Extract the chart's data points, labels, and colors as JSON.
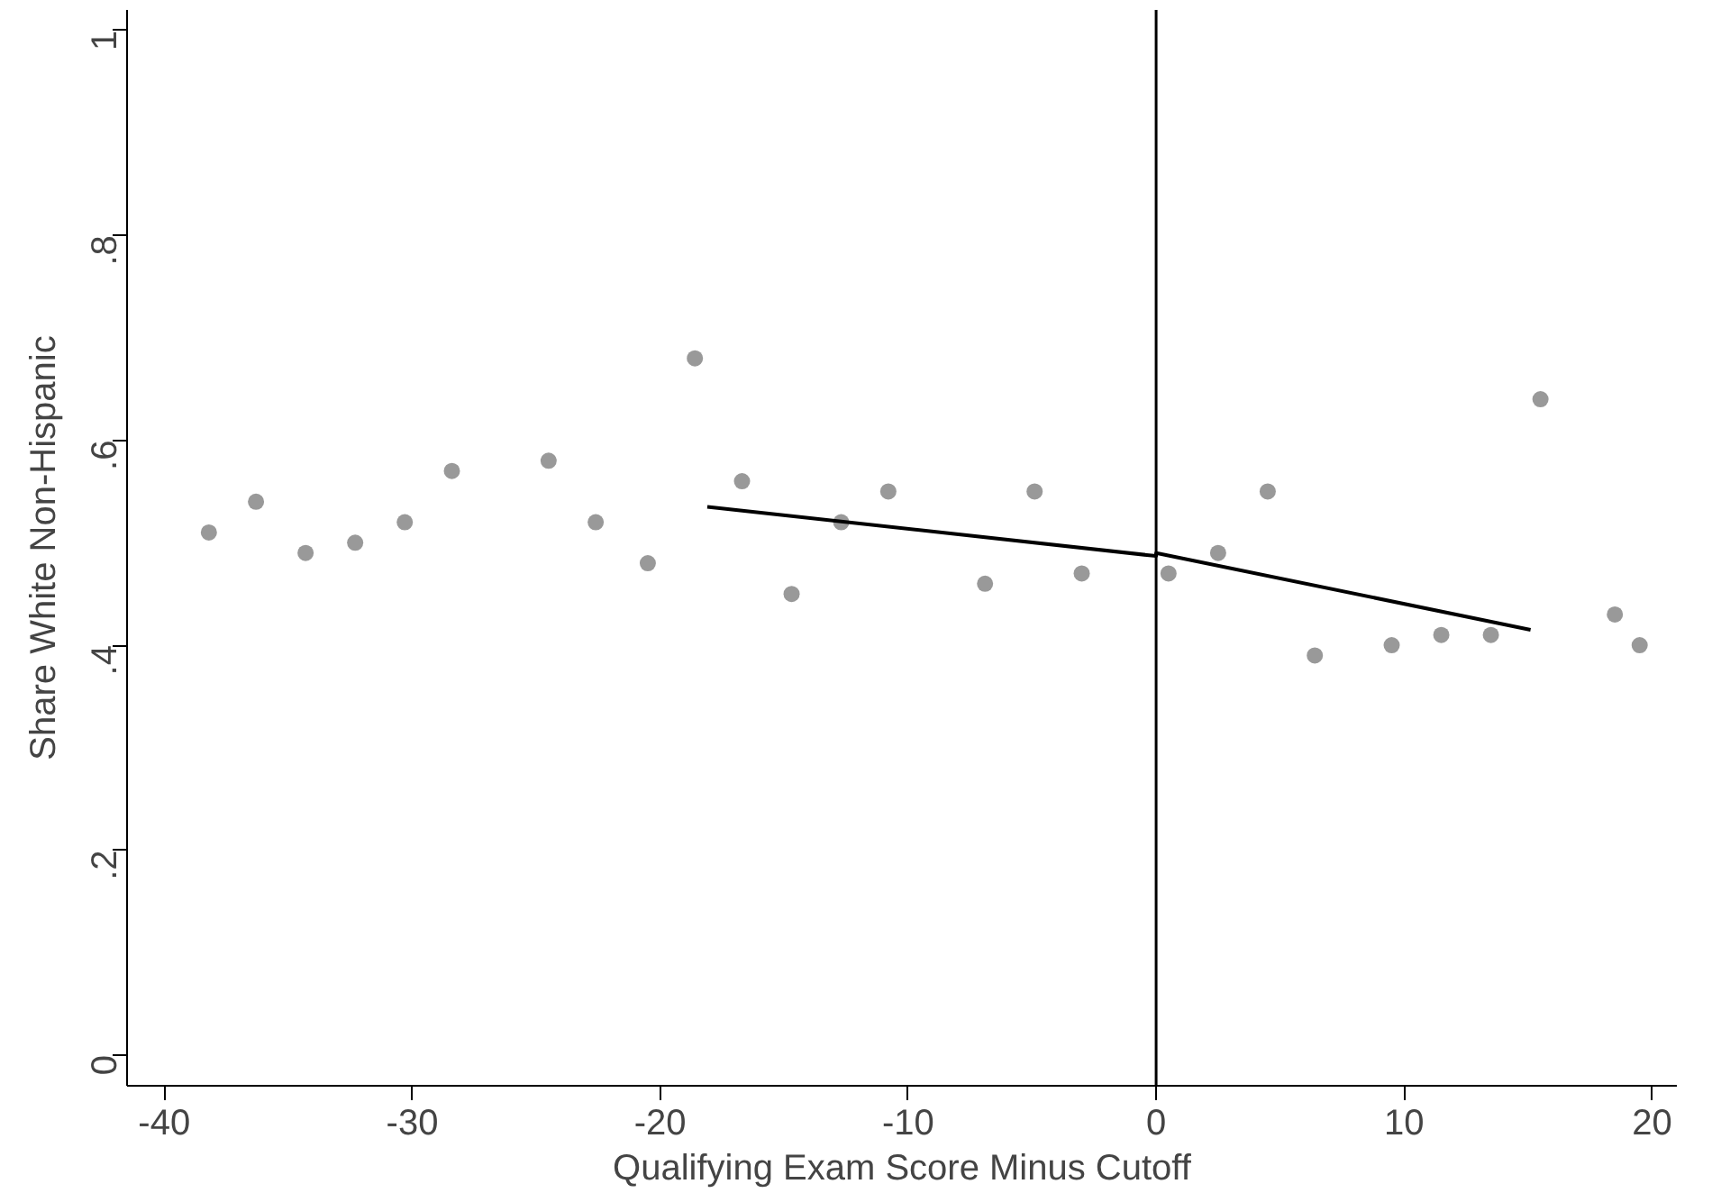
{
  "chart_data": {
    "type": "scatter",
    "xlabel": "Qualifying Exam Score Minus Cutoff",
    "ylabel": "Share White Non-Hispanic",
    "xlim": [
      -41.5,
      21
    ],
    "ylim": [
      -0.03,
      1.02
    ],
    "xticks": [
      -40,
      -30,
      -20,
      -10,
      0,
      10,
      20
    ],
    "yticks": [
      0,
      {
        "value": 0.2,
        "label": ".2"
      },
      {
        "value": 0.4,
        "label": ".4"
      },
      {
        "value": 0.6,
        "label": ".6"
      },
      {
        "value": 0.8,
        "label": ".8"
      },
      1
    ],
    "grid": false,
    "series": [
      {
        "color": "#999999",
        "marker": "circle",
        "x": [
          -38.2,
          -36.3,
          -34.3,
          -32.3,
          -30.3,
          -28.4,
          -24.5,
          -22.6,
          -20.5,
          -18.6,
          -16.7,
          -14.7,
          -12.7,
          -10.8,
          -6.9,
          -4.9,
          -3.0,
          0.5,
          2.5,
          4.5,
          6.4,
          9.5,
          11.5,
          13.5,
          15.5,
          18.5,
          19.5
        ],
        "values": [
          0.51,
          0.54,
          0.49,
          0.5,
          0.52,
          0.57,
          0.58,
          0.52,
          0.48,
          0.68,
          0.56,
          0.45,
          0.52,
          0.55,
          0.46,
          0.55,
          0.47,
          0.47,
          0.49,
          0.55,
          0.39,
          0.4,
          0.41,
          0.41,
          0.64,
          0.43,
          0.4
        ]
      },
      {
        "type": "line",
        "color": "#000000",
        "marker": "none",
        "x": [
          -18.1,
          0,
          0,
          15.1
        ],
        "values": [
          0.535,
          0.487,
          0.49,
          0.415
        ]
      }
    ],
    "ref_lines": [
      {
        "axis": "x",
        "value": 0,
        "color": "#000000"
      }
    ]
  }
}
